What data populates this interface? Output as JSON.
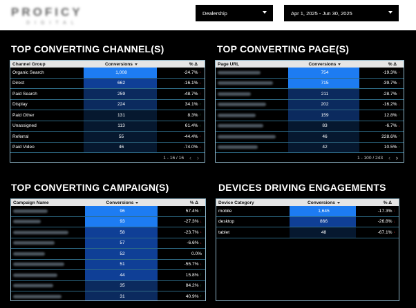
{
  "brand": {
    "logo_text": "PROFICY",
    "logo_sub": "DIGITAL"
  },
  "filters": {
    "dealership": {
      "value": "Dealership"
    },
    "date_range": {
      "value": "Apr 1, 2025 - Jun 30, 2025"
    }
  },
  "colors": {
    "bar_high": "#1d7cf2",
    "bar_mid": "#0f3f96",
    "bar_low": "#0b2a5e",
    "bar_lowest": "#06182f",
    "up": "#2db84d",
    "down": "#e23b3b"
  },
  "channels": {
    "title": "TOP CONVERTING CHANNEL(S)",
    "columns": [
      "Channel Group",
      "Conversions",
      "% Δ"
    ],
    "rows": [
      {
        "label": "Organic Search",
        "conversions": "1,008",
        "change": "-24.7%",
        "dir": "down",
        "level": 1.0
      },
      {
        "label": "Direct",
        "conversions": "662",
        "change": "-16.1%",
        "dir": "down",
        "level": 0.66
      },
      {
        "label": "Paid Search",
        "conversions": "259",
        "change": "-48.7%",
        "dir": "down",
        "level": 0.26
      },
      {
        "label": "Display",
        "conversions": "224",
        "change": "34.1%",
        "dir": "up",
        "level": 0.22
      },
      {
        "label": "Paid Other",
        "conversions": "131",
        "change": "8.3%",
        "dir": "up",
        "level": 0.13
      },
      {
        "label": "Unassigned",
        "conversions": "113",
        "change": "61.4%",
        "dir": "up",
        "level": 0.11
      },
      {
        "label": "Referral",
        "conversions": "55",
        "change": "-44.4%",
        "dir": "down",
        "level": 0.05
      },
      {
        "label": "Paid Video",
        "conversions": "46",
        "change": "-74.0%",
        "dir": "down",
        "level": 0.05
      }
    ],
    "pager": "1 - 16 / 16"
  },
  "pages": {
    "title": "TOP CONVERTING PAGE(S)",
    "columns": [
      "Page URL",
      "Conversions",
      "% Δ"
    ],
    "rows": [
      {
        "conversions": "754",
        "change": "-19.3%",
        "dir": "down",
        "level": 1.0
      },
      {
        "conversions": "715",
        "change": "-39.7%",
        "dir": "down",
        "level": 0.95
      },
      {
        "conversions": "211",
        "change": "-28.7%",
        "dir": "down",
        "level": 0.28
      },
      {
        "conversions": "202",
        "change": "-16.2%",
        "dir": "down",
        "level": 0.27
      },
      {
        "conversions": "159",
        "change": "12.8%",
        "dir": "up",
        "level": 0.21
      },
      {
        "conversions": "83",
        "change": "-6.7%",
        "dir": "down",
        "level": 0.11
      },
      {
        "conversions": "46",
        "change": "228.6%",
        "dir": "up",
        "level": 0.06
      },
      {
        "conversions": "42",
        "change": "10.5%",
        "dir": "up",
        "level": 0.06
      }
    ],
    "pager": "1 - 100 / 243"
  },
  "campaigns": {
    "title": "TOP CONVERTING CAMPAIGN(S)",
    "columns": [
      "Campaign Name",
      "Conversions",
      "% Δ"
    ],
    "rows": [
      {
        "conversions": "96",
        "change": "57.4%",
        "dir": "up",
        "level": 1.0
      },
      {
        "conversions": "93",
        "change": "-27.3%",
        "dir": "down",
        "level": 0.97
      },
      {
        "conversions": "58",
        "change": "-23.7%",
        "dir": "down",
        "level": 0.6
      },
      {
        "conversions": "57",
        "change": "-6.6%",
        "dir": "down",
        "level": 0.59
      },
      {
        "conversions": "52",
        "change": "0.0%",
        "dir": "none",
        "level": 0.54
      },
      {
        "conversions": "51",
        "change": "-55.7%",
        "dir": "down",
        "level": 0.53
      },
      {
        "conversions": "44",
        "change": "15.8%",
        "dir": "up",
        "level": 0.46
      },
      {
        "conversions": "35",
        "change": "84.2%",
        "dir": "up",
        "level": 0.36
      },
      {
        "conversions": "31",
        "change": "40.9%",
        "dir": "up",
        "level": 0.32
      }
    ]
  },
  "devices": {
    "title": "DEVICES DRIVING ENGAGEMENTS",
    "columns": [
      "Device Category",
      "Conversions",
      "% Δ"
    ],
    "rows": [
      {
        "label": "mobile",
        "conversions": "1,645",
        "change": "-17.3%",
        "dir": "down",
        "level": 1.0
      },
      {
        "label": "desktop",
        "conversions": "866",
        "change": "-26.8%",
        "dir": "down",
        "level": 0.53
      },
      {
        "label": "tablet",
        "conversions": "48",
        "change": "-67.1%",
        "dir": "down",
        "level": 0.03
      }
    ]
  }
}
